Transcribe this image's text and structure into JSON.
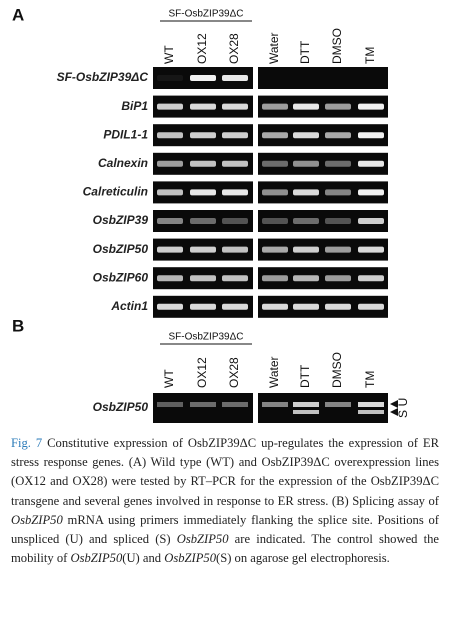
{
  "panel_a": {
    "label": "A",
    "header": "SF-OsbZIP39ΔC",
    "lanes": [
      "WT",
      "OX12",
      "OX28",
      "Water",
      "DTT",
      "DMSO",
      "TM"
    ],
    "genes": [
      "SF-OsbZIP39ΔC",
      "BiP1",
      "PDIL1-1",
      "Calnexin",
      "Calreticulin",
      "OsbZIP39",
      "OsbZIP50",
      "OsbZIP60",
      "Actin1"
    ]
  },
  "panel_b": {
    "label": "B",
    "header": "SF-OsbZIP39ΔC",
    "lanes": [
      "WT",
      "OX12",
      "OX28",
      "Water",
      "DTT",
      "DMSO",
      "TM"
    ],
    "gene": "OsbZIP50",
    "band_labels": [
      "U",
      "S"
    ]
  },
  "caption": [
    {
      "text": "Fig. 7",
      "style": "link"
    },
    {
      "text": " Constitutive expression of OsbZIP39ΔC up-regulates the expression of ER stress response genes. (A) Wild type (WT) and OsbZIP39ΔC overexpression lines (OX12 and OX28) were tested by RT–PCR for the expression of the OsbZIP39ΔC transgene and several genes involved in response to ER stress. (B) Splicing assay of "
    },
    {
      "text": "OsbZIP50",
      "style": "italic"
    },
    {
      "text": " mRNA using primers immediately flanking the splice site. Positions of unspliced (U) and spliced (S) "
    },
    {
      "text": "OsbZIP50",
      "style": "italic"
    },
    {
      "text": " are indicated. The control showed the mobility of "
    },
    {
      "text": "OsbZIP50",
      "style": "italic"
    },
    {
      "text": "(U) and "
    },
    {
      "text": "OsbZIP50",
      "style": "italic"
    },
    {
      "text": "(S) on agarose gel electrophoresis."
    }
  ]
}
